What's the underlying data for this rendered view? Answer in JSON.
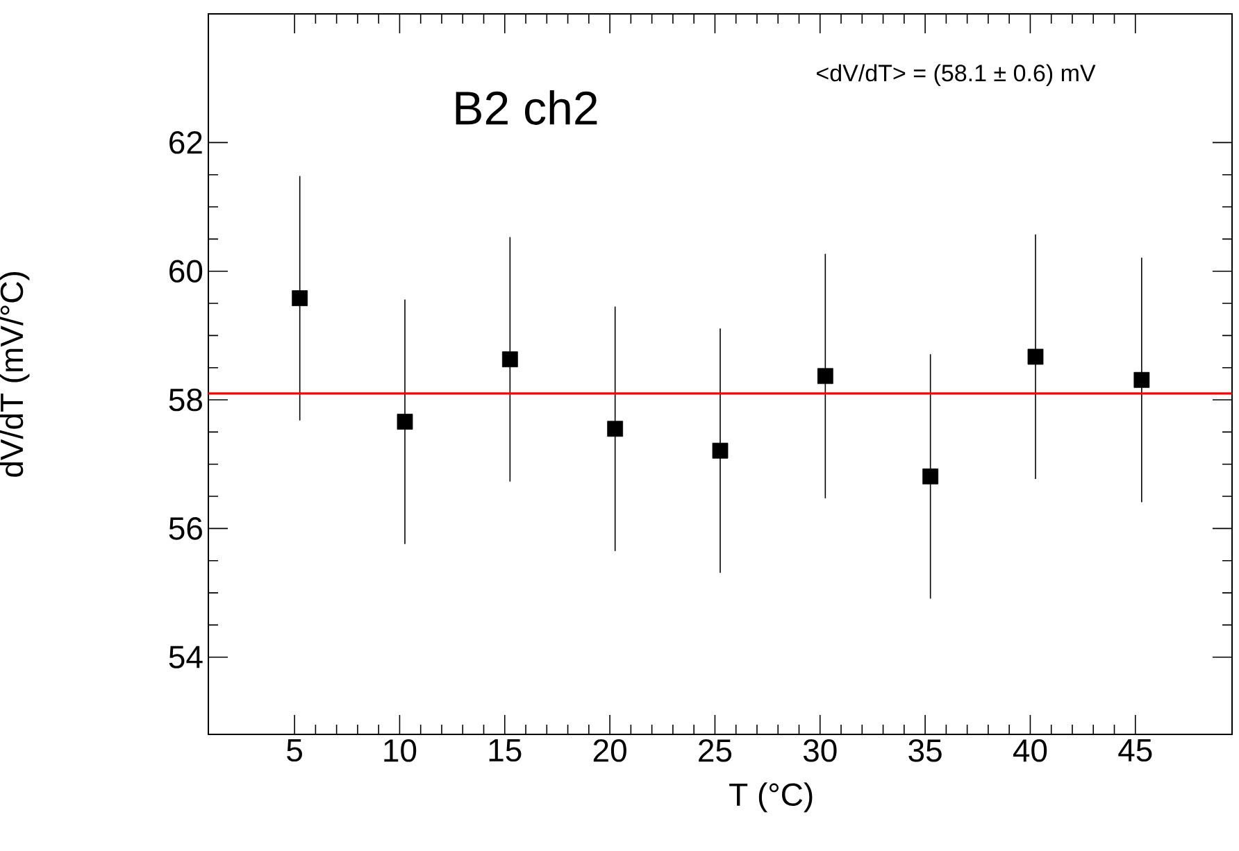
{
  "chart_data": {
    "type": "scatter",
    "xlabel": "T (°C)",
    "ylabel": "dV/dT (mV/°C)",
    "x": [
      5.25,
      10.25,
      15.25,
      20.25,
      25.25,
      30.25,
      35.25,
      40.25,
      45.3
    ],
    "series": [
      {
        "color": "#000000",
        "values": [
          59.58,
          57.66,
          58.63,
          57.55,
          57.21,
          58.37,
          56.81,
          58.67,
          58.31
        ],
        "errors": [
          1.9,
          1.9,
          1.9,
          1.9,
          1.9,
          1.9,
          1.9,
          1.9,
          1.9
        ]
      }
    ],
    "marker": "square",
    "xlim": [
      0.9,
      49.6
    ],
    "ylim": [
      52.8,
      64
    ],
    "xticks": [
      5,
      10,
      15,
      20,
      25,
      30,
      35,
      40,
      45
    ],
    "yticks": [
      54,
      56,
      58,
      60,
      62
    ],
    "ref_lines": [
      {
        "axis": "y",
        "value": 58.1,
        "color": "#ff0000"
      }
    ],
    "annotations": [
      "B2 ch2",
      "<dV/dT> = (58.1 ± 0.6) mV"
    ],
    "tick_labels": "xy"
  }
}
